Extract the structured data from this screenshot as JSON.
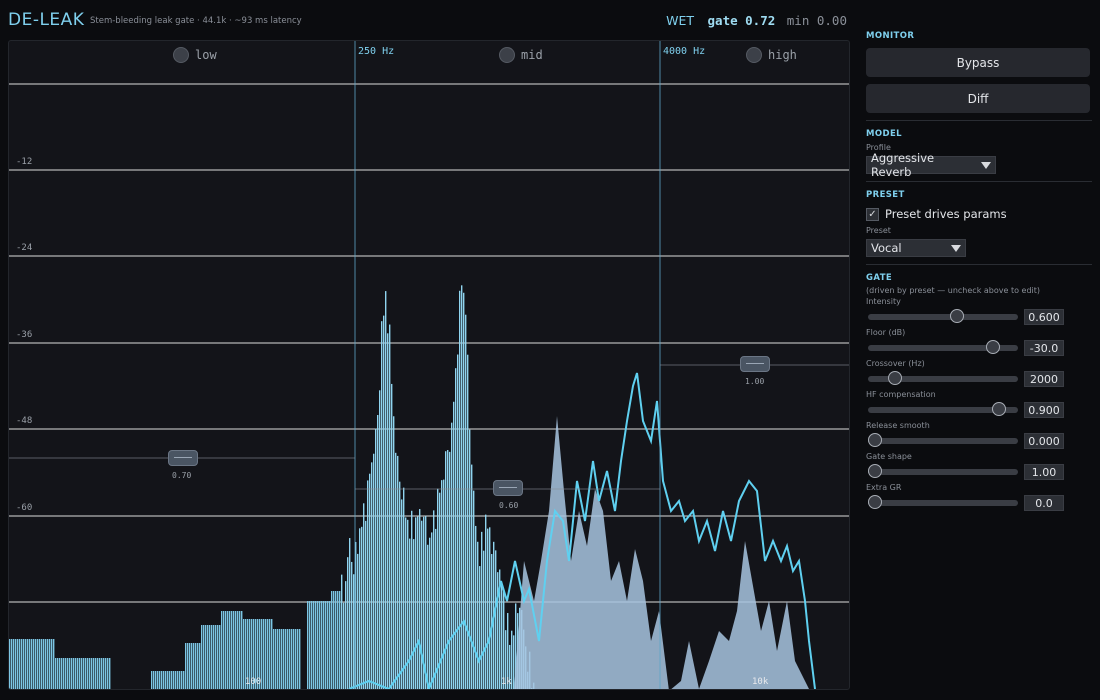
{
  "header": {
    "title": "DE-LEAK",
    "subtitle": "Stem-bleeding leak gate · 44.1k · ~93 ms latency",
    "wet_label": "WET",
    "gate_text": "gate 0.72",
    "min_text": "min 0.00"
  },
  "bands": [
    {
      "label": "low"
    },
    {
      "label": "mid"
    },
    {
      "label": "high"
    }
  ],
  "crossovers": [
    "250 Hz",
    "4000 Hz"
  ],
  "db_labels": [
    "-12",
    "-24",
    "-36",
    "-48",
    "-60"
  ],
  "freq_labels": [
    "100",
    "1k",
    "10k"
  ],
  "band_thresholds": [
    "0.70",
    "0.60",
    "1.00"
  ],
  "panel": {
    "monitor": {
      "title": "MONITOR",
      "bypass": "Bypass",
      "diff": "Diff"
    },
    "model": {
      "title": "MODEL",
      "profile_label": "Profile",
      "profile_value": "Aggressive Reverb"
    },
    "preset": {
      "title": "PRESET",
      "drives_label": "Preset drives params",
      "checked": true,
      "preset_label": "Preset",
      "preset_value": "Vocal"
    },
    "gate": {
      "title": "GATE",
      "note": "(driven by preset — uncheck above to edit)",
      "params": [
        {
          "label": "Intensity",
          "value": "0.600",
          "fraction": 0.59
        },
        {
          "label": "Floor (dB)",
          "value": "-30.0",
          "fraction": 0.83
        },
        {
          "label": "Crossover (Hz)",
          "value": "2000",
          "fraction": 0.18
        },
        {
          "label": "HF compensation",
          "value": "0.900",
          "fraction": 0.87
        },
        {
          "label": "Release smooth",
          "value": "0.000",
          "fraction": 0.0
        },
        {
          "label": "Gate shape",
          "value": "1.00",
          "fraction": 0.0
        },
        {
          "label": "Extra GR",
          "value": "0.0",
          "fraction": 0.0
        }
      ]
    }
  }
}
